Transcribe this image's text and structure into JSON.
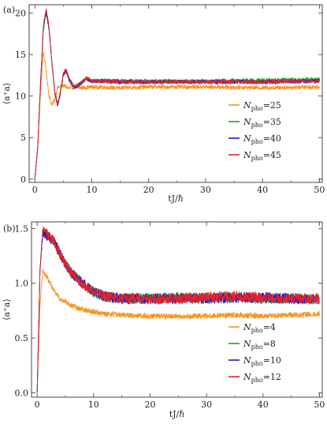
{
  "chart_data": [
    {
      "type": "line",
      "panel_label": "(a)",
      "xlabel": "tJ/ℏ",
      "ylabel": "⟨a⁺a⟩",
      "xlim": [
        -1,
        50.5
      ],
      "ylim": [
        -0.4,
        21
      ],
      "xticks": [
        0,
        10,
        20,
        30,
        40,
        50
      ],
      "yticks": [
        0,
        5,
        10,
        15,
        20
      ],
      "grid": false,
      "legend_position": "lower-right",
      "legend_prefix": "N",
      "legend_subscript": "pho",
      "series": [
        {
          "name": "=25",
          "color": "#f7931e",
          "x": [
            0,
            0.5,
            1,
            1.5,
            2,
            2.5,
            3,
            3.5,
            4,
            5,
            6,
            7,
            8,
            10,
            15,
            20,
            30,
            40,
            50
          ],
          "y": [
            0,
            3.5,
            10.5,
            15.4,
            13.0,
            10.0,
            8.9,
            9.6,
            11.0,
            11.3,
            10.9,
            11.1,
            11.0,
            11.1,
            11.0,
            11.1,
            11.1,
            11.0,
            11.1
          ],
          "noise": 0.25
        },
        {
          "name": "=35",
          "color": "#1f9e1f",
          "x": [
            0,
            0.5,
            1,
            1.5,
            2,
            2.5,
            3,
            3.5,
            4,
            4.5,
            5,
            5.5,
            6,
            7,
            8,
            9,
            10,
            12,
            15,
            20,
            30,
            40,
            50
          ],
          "y": [
            0,
            3.8,
            11.5,
            18.0,
            20.0,
            18.0,
            14.0,
            10.5,
            9.0,
            10.5,
            12.5,
            13.0,
            12.0,
            11.0,
            11.5,
            12.1,
            11.8,
            11.9,
            11.8,
            11.8,
            11.8,
            11.9,
            12.0
          ],
          "noise": 0.25
        },
        {
          "name": "=40",
          "color": "#1a1acc",
          "x": [
            0,
            0.5,
            1,
            1.5,
            2,
            2.5,
            3,
            3.5,
            4,
            4.5,
            5,
            5.5,
            6,
            7,
            8,
            9,
            10,
            12,
            15,
            20,
            30,
            40,
            50
          ],
          "y": [
            0,
            3.8,
            11.5,
            18.3,
            20.2,
            18.2,
            14.0,
            10.4,
            8.9,
            10.4,
            12.6,
            13.1,
            12.0,
            11.0,
            11.5,
            12.1,
            11.8,
            11.8,
            11.7,
            11.7,
            11.7,
            11.7,
            11.8
          ],
          "noise": 0.25
        },
        {
          "name": "=45",
          "color": "#e3232b",
          "x": [
            0,
            0.5,
            1,
            1.5,
            2,
            2.5,
            3,
            3.5,
            4,
            4.5,
            5,
            5.5,
            6,
            7,
            8,
            9,
            10,
            12,
            15,
            20,
            30,
            40,
            50
          ],
          "y": [
            0,
            3.8,
            11.6,
            18.5,
            20.4,
            18.3,
            14.0,
            10.4,
            8.9,
            10.4,
            12.6,
            13.2,
            12.1,
            11.0,
            11.5,
            12.2,
            11.8,
            11.8,
            11.7,
            11.7,
            11.7,
            11.7,
            11.8
          ],
          "noise": 0.25
        }
      ]
    },
    {
      "type": "line",
      "panel_label": "(b)",
      "xlabel": "tJ/ℏ",
      "ylabel": "⟨a⁺a⟩",
      "xlim": [
        -1,
        50.5
      ],
      "ylim": [
        -0.04,
        1.56
      ],
      "xticks": [
        0,
        10,
        20,
        30,
        40,
        50
      ],
      "yticks": [
        0.0,
        0.5,
        1.0,
        1.5
      ],
      "ytick_labels": [
        "0.0",
        "0.5",
        "1.0",
        "1.5"
      ],
      "grid": false,
      "legend_position": "lower-right",
      "legend_prefix": "N",
      "legend_subscript": "pho",
      "series": [
        {
          "name": "=4",
          "color": "#f7931e",
          "x": [
            0,
            0.5,
            1,
            2,
            3,
            4,
            6,
            8,
            10,
            12,
            15,
            20,
            25,
            30,
            35,
            40,
            45,
            50
          ],
          "y": [
            0,
            0.8,
            1.12,
            1.03,
            0.93,
            0.86,
            0.8,
            0.76,
            0.74,
            0.72,
            0.71,
            0.7,
            0.7,
            0.7,
            0.71,
            0.7,
            0.71,
            0.72
          ],
          "noise": 0.025
        },
        {
          "name": "=8",
          "color": "#1f9e1f",
          "x": [
            0,
            0.5,
            1,
            2,
            3,
            4,
            5,
            6,
            8,
            10,
            12,
            15,
            20,
            25,
            30,
            35,
            40,
            45,
            50
          ],
          "y": [
            0,
            1.1,
            1.48,
            1.42,
            1.37,
            1.27,
            1.18,
            1.1,
            1.0,
            0.92,
            0.88,
            0.86,
            0.86,
            0.87,
            0.86,
            0.87,
            0.86,
            0.86,
            0.85
          ],
          "noise": 0.05
        },
        {
          "name": "=10",
          "color": "#1a1acc",
          "x": [
            0,
            0.5,
            1,
            2,
            3,
            4,
            5,
            6,
            8,
            10,
            12,
            15,
            20,
            25,
            30,
            35,
            40,
            45,
            50
          ],
          "y": [
            0,
            1.12,
            1.46,
            1.43,
            1.38,
            1.27,
            1.18,
            1.1,
            1.0,
            0.92,
            0.88,
            0.86,
            0.86,
            0.86,
            0.86,
            0.87,
            0.87,
            0.86,
            0.85
          ],
          "noise": 0.05
        },
        {
          "name": "=12",
          "color": "#e3232b",
          "x": [
            0,
            0.5,
            1,
            2,
            3,
            4,
            5,
            6,
            8,
            10,
            12,
            15,
            20,
            25,
            30,
            35,
            40,
            45,
            50
          ],
          "y": [
            0,
            1.13,
            1.5,
            1.44,
            1.38,
            1.27,
            1.18,
            1.1,
            1.0,
            0.92,
            0.88,
            0.86,
            0.86,
            0.86,
            0.87,
            0.88,
            0.87,
            0.86,
            0.86
          ],
          "noise": 0.05
        }
      ]
    }
  ]
}
